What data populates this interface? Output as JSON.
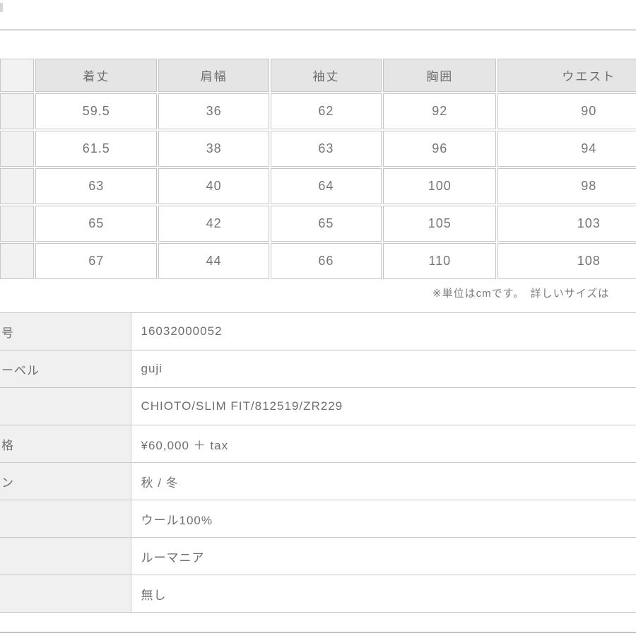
{
  "size_table": {
    "corner_label": "",
    "columns": [
      "着丈",
      "肩幅",
      "袖丈",
      "胸囲",
      "ウエスト"
    ],
    "rows": [
      {
        "row_label": "",
        "values": [
          "59.5",
          "36",
          "62",
          "92",
          "90"
        ]
      },
      {
        "row_label": "",
        "values": [
          "61.5",
          "38",
          "63",
          "96",
          "94"
        ]
      },
      {
        "row_label": "",
        "values": [
          "63",
          "40",
          "64",
          "100",
          "98"
        ]
      },
      {
        "row_label": "",
        "values": [
          "65",
          "42",
          "65",
          "105",
          "103"
        ]
      },
      {
        "row_label": "",
        "values": [
          "67",
          "44",
          "66",
          "110",
          "108"
        ]
      }
    ]
  },
  "note": "※単位はcmです。　詳しいサイズは",
  "detail_table": {
    "rows": [
      {
        "label": "号",
        "value": "16032000052"
      },
      {
        "label": "ーベル",
        "value": "guji"
      },
      {
        "label": "",
        "value": "CHIOTO/SLIM FIT/812519/ZR229"
      },
      {
        "label": "格",
        "value": "¥60,000 ＋ tax"
      },
      {
        "label": "ン",
        "value": "秋 / 冬"
      },
      {
        "label": "",
        "value": "ウール100%"
      },
      {
        "label": "",
        "value": "ルーマニア"
      },
      {
        "label": "",
        "value": "無し"
      }
    ]
  },
  "colors": {
    "top_divider": "#b7b7b7",
    "bottom_divider": "#c3c3c3",
    "table_border": "#c6c6c6",
    "header_bg": "#e5e5e5",
    "row_header_bg": "#f2f2f2",
    "detail_label_bg": "#f0f0f0",
    "text": "#6f6f6f"
  }
}
